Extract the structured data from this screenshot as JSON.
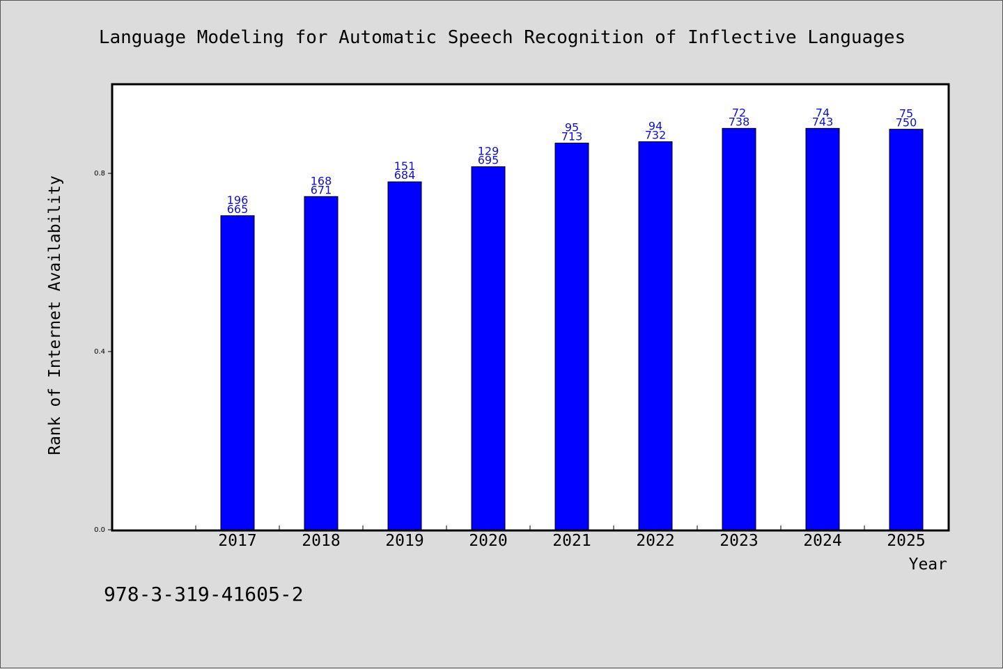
{
  "chart_data": {
    "type": "bar",
    "title": "Language Modeling for Automatic Speech Recognition of Inflective Languages",
    "xlabel": "Year",
    "ylabel": "Rank of Internet Availability",
    "categories": [
      "2017",
      "2018",
      "2019",
      "2020",
      "2021",
      "2022",
      "2023",
      "2024",
      "2025"
    ],
    "values": [
      0.705,
      0.748,
      0.781,
      0.815,
      0.868,
      0.871,
      0.901,
      0.901,
      0.899
    ],
    "bar_labels_top": [
      "196",
      "168",
      "151",
      "129",
      "95",
      "94",
      "72",
      "74",
      "75"
    ],
    "bar_labels_bottom": [
      "665",
      "671",
      "684",
      "695",
      "713",
      "732",
      "738",
      "743",
      "750"
    ],
    "yticks": [
      "0.0",
      "0.4",
      "0.8"
    ],
    "ylim": [
      0,
      1.0
    ],
    "grid": false,
    "bar_color": "#0000ff",
    "label_color": "#1010c8"
  },
  "footer_text": "978-3-319-41605-2"
}
